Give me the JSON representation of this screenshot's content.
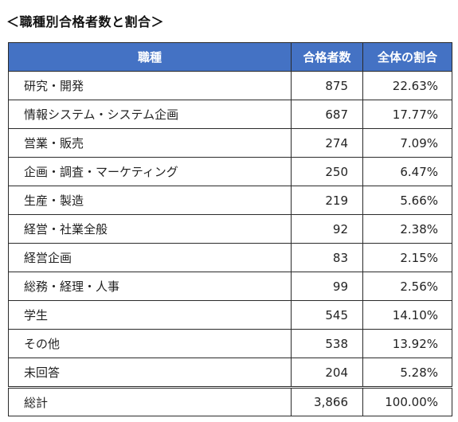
{
  "title": "＜職種別合格者数と割合＞",
  "headers": {
    "job": "職種",
    "count": "合格者数",
    "ratio": "全体の割合"
  },
  "rows": [
    {
      "job": "研究・開発",
      "count": "875",
      "ratio": "22.63%"
    },
    {
      "job": "情報システム・システム企画",
      "count": "687",
      "ratio": "17.77%"
    },
    {
      "job": "営業・販売",
      "count": "274",
      "ratio": "7.09%"
    },
    {
      "job": "企画・調査・マーケティング",
      "count": "250",
      "ratio": "6.47%"
    },
    {
      "job": "生産・製造",
      "count": "219",
      "ratio": "5.66%"
    },
    {
      "job": "経営・社業全般",
      "count": "92",
      "ratio": "2.38%"
    },
    {
      "job": "経営企画",
      "count": "83",
      "ratio": "2.15%"
    },
    {
      "job": "総務・経理・人事",
      "count": "99",
      "ratio": "2.56%"
    },
    {
      "job": "学生",
      "count": "545",
      "ratio": "14.10%"
    },
    {
      "job": "その他",
      "count": "538",
      "ratio": "13.92%"
    },
    {
      "job": "未回答",
      "count": "204",
      "ratio": "5.28%"
    }
  ],
  "total": {
    "job": "総計",
    "count": "3,866",
    "ratio": "100.00%"
  },
  "colors": {
    "header_bg": "#4472c4",
    "header_text": "#ffffff",
    "border": "#2a2a2a"
  }
}
